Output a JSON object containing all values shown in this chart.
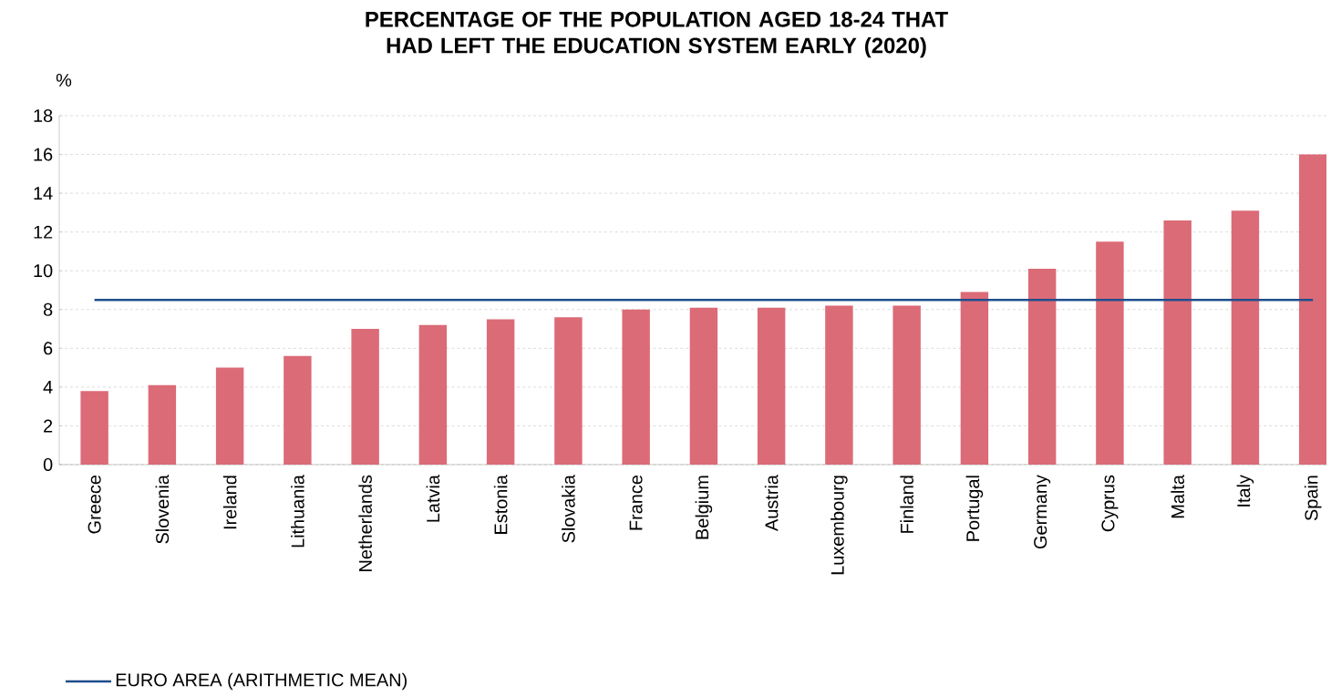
{
  "chart_data": {
    "type": "bar",
    "title": "PERCENTAGE OF THE POPULATION AGED 18-24 THAT HAD LEFT THE EDUCATION SYSTEM EARLY (2020)",
    "ylabel": "%",
    "categories": [
      "Greece",
      "Slovenia",
      "Ireland",
      "Lithuania",
      "Netherlands",
      "Latvia",
      "Estonia",
      "Slovakia",
      "France",
      "Belgium",
      "Austria",
      "Luxembourg",
      "Finland",
      "Portugal",
      "Germany",
      "Cyprus",
      "Malta",
      "Italy",
      "Spain"
    ],
    "values": [
      3.8,
      4.1,
      5.0,
      5.6,
      7.0,
      7.2,
      7.5,
      7.6,
      8.0,
      8.1,
      8.1,
      8.2,
      8.2,
      8.9,
      10.1,
      11.5,
      12.6,
      13.1,
      16.0
    ],
    "color": "#db6b77",
    "ylim": [
      0,
      18
    ],
    "yticks": [
      0,
      2,
      4,
      6,
      8,
      10,
      12,
      14,
      16,
      18
    ],
    "grid": "y",
    "ref_lines": [
      {
        "axis": "y",
        "value": 8.5,
        "label": "EURO AREA (ARITHMETIC MEAN)",
        "color": "#1f4e8c"
      }
    ],
    "legend": "bottom left"
  }
}
